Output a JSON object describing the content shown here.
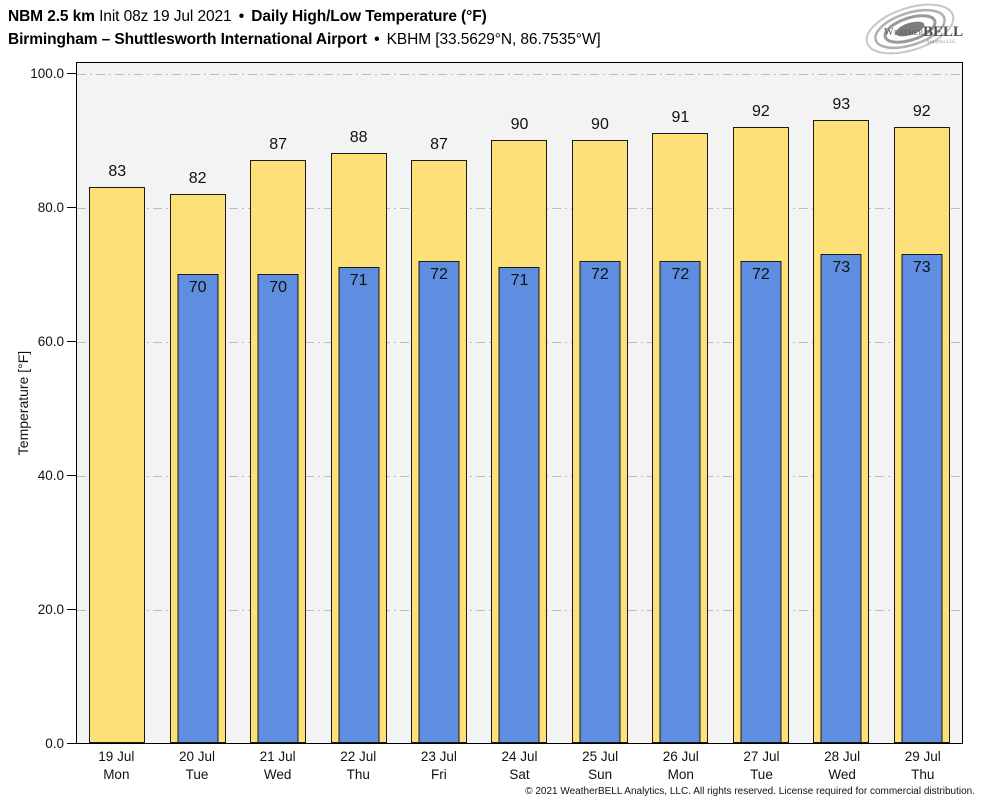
{
  "header": {
    "model": "NBM 2.5 km",
    "init": "Init 08z 19 Jul 2021",
    "bullet": "•",
    "product": "Daily High/Low Temperature (°F)",
    "location": "Birmingham – Shuttlesworth International Airport",
    "station": "KBHM [33.5629°N, 86.7535°W]"
  },
  "logo": {
    "name": "weatherbell-logo",
    "word1": "Weather",
    "word2": "BELL",
    "sub": "Analytics LLC"
  },
  "chart_data": {
    "type": "bar",
    "title": "Daily High/Low Temperature (°F)",
    "categories": [
      "19 Jul",
      "20 Jul",
      "21 Jul",
      "22 Jul",
      "23 Jul",
      "24 Jul",
      "25 Jul",
      "26 Jul",
      "27 Jul",
      "28 Jul",
      "29 Jul"
    ],
    "weekdays": [
      "Mon",
      "Tue",
      "Wed",
      "Thu",
      "Fri",
      "Sat",
      "Sun",
      "Mon",
      "Tue",
      "Wed",
      "Thu"
    ],
    "series": [
      {
        "name": "High",
        "color": "#FDE077",
        "values": [
          83,
          82,
          87,
          88,
          87,
          90,
          90,
          91,
          92,
          93,
          92
        ]
      },
      {
        "name": "Low",
        "color": "#5F8DE0",
        "values": [
          null,
          70,
          70,
          71,
          72,
          71,
          72,
          72,
          72,
          73,
          73
        ]
      }
    ],
    "xlabel": "",
    "ylabel": "Temperature [°F]",
    "yticks": [
      0,
      20,
      40,
      60,
      80,
      100
    ],
    "ytick_labels": [
      "0.0",
      "20.0",
      "40.0",
      "60.0",
      "80.0",
      "100.0"
    ],
    "ylim": [
      0,
      101.8
    ],
    "grid": "horizontal dash-dot",
    "plot_background": "#f3f3f3",
    "gridline_color": "#bdbdbd"
  },
  "footer": {
    "copyright": "© 2021 WeatherBELL Analytics, LLC. All rights reserved. License required for commercial distribution."
  }
}
